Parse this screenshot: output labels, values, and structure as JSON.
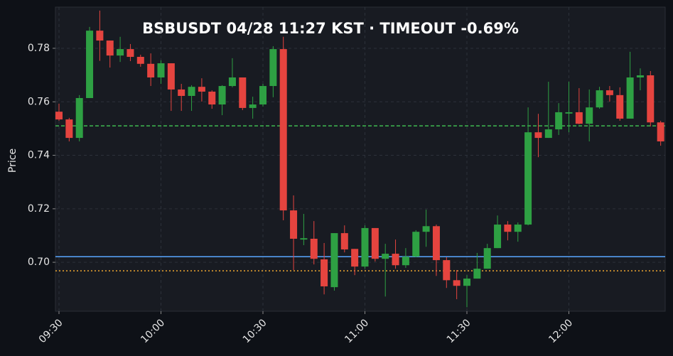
{
  "chart_data": {
    "type": "candlestick",
    "title": "BSBUSDT  04/28 11:27 KST  ·  TIMEOUT -0.69%",
    "ylabel": "Price",
    "x": [
      "09:30",
      "09:33",
      "09:36",
      "09:39",
      "09:42",
      "09:45",
      "09:48",
      "09:51",
      "09:54",
      "09:57",
      "10:00",
      "10:03",
      "10:06",
      "10:09",
      "10:12",
      "10:15",
      "10:18",
      "10:21",
      "10:24",
      "10:27",
      "10:30",
      "10:33",
      "10:36",
      "10:39",
      "10:42",
      "10:45",
      "10:48",
      "10:51",
      "10:54",
      "10:57",
      "11:00",
      "11:03",
      "11:06",
      "11:09",
      "11:12",
      "11:15",
      "11:18",
      "11:21",
      "11:24",
      "11:27",
      "11:30",
      "11:33",
      "11:36",
      "11:39",
      "11:42",
      "11:45",
      "11:48",
      "11:51",
      "11:54",
      "11:57",
      "12:00",
      "12:03",
      "12:06",
      "12:09",
      "12:12",
      "12:15",
      "12:18",
      "12:21",
      "12:24",
      "12:27"
    ],
    "open": [
      0.7563,
      0.7534,
      0.7465,
      0.7614,
      0.7866,
      0.7829,
      0.7773,
      0.7797,
      0.7768,
      0.7742,
      0.7691,
      0.7744,
      0.7646,
      0.7622,
      0.7656,
      0.7638,
      0.759,
      0.7659,
      0.7691,
      0.7577,
      0.759,
      0.7659,
      0.7797,
      0.7194,
      0.7085,
      0.7088,
      0.7011,
      0.6907,
      0.7109,
      0.705,
      0.6984,
      0.7128,
      0.7013,
      0.7032,
      0.6989,
      0.7021,
      0.7114,
      0.7135,
      0.7008,
      0.6933,
      0.6912,
      0.6939,
      0.6976,
      0.7053,
      0.7141,
      0.7114,
      0.7141,
      0.7486,
      0.7465,
      0.7497,
      0.7556,
      0.7561,
      0.7518,
      0.7579,
      0.7643,
      0.7625,
      0.7537,
      0.7691,
      0.7699,
      0.7523
    ],
    "high": [
      0.7593,
      0.754,
      0.7625,
      0.788,
      0.7941,
      0.7829,
      0.7843,
      0.7816,
      0.7776,
      0.7781,
      0.7755,
      0.7744,
      0.7667,
      0.7662,
      0.7688,
      0.7643,
      0.7662,
      0.7763,
      0.7691,
      0.7619,
      0.7667,
      0.7808,
      0.7843,
      0.725,
      0.7181,
      0.7154,
      0.7072,
      0.7109,
      0.7138,
      0.705,
      0.7138,
      0.7128,
      0.7069,
      0.7085,
      0.7053,
      0.712,
      0.7197,
      0.7141,
      0.7019,
      0.6971,
      0.6952,
      0.7035,
      0.7069,
      0.7175,
      0.7154,
      0.7149,
      0.7579,
      0.7555,
      0.7675,
      0.7595,
      0.7675,
      0.7651,
      0.7646,
      0.7656,
      0.7659,
      0.7654,
      0.7787,
      0.7725,
      0.7715,
      0.7529
    ],
    "low": [
      0.7529,
      0.7452,
      0.7452,
      0.7614,
      0.7753,
      0.7728,
      0.7749,
      0.7752,
      0.7731,
      0.7659,
      0.7667,
      0.7566,
      0.7566,
      0.7566,
      0.7601,
      0.7574,
      0.755,
      0.7654,
      0.7569,
      0.7537,
      0.7582,
      0.7617,
      0.7157,
      0.6971,
      0.7064,
      0.6992,
      0.688,
      0.6894,
      0.7037,
      0.6952,
      0.6976,
      0.7003,
      0.6872,
      0.6976,
      0.6979,
      0.7019,
      0.7058,
      0.6949,
      0.6904,
      0.6862,
      0.6832,
      0.6939,
      0.6976,
      0.7053,
      0.7082,
      0.7077,
      0.7138,
      0.7393,
      0.7465,
      0.7476,
      0.7486,
      0.7516,
      0.7452,
      0.7574,
      0.7601,
      0.7529,
      0.7537,
      0.7643,
      0.7508,
      0.7436
    ],
    "close": [
      0.7534,
      0.7465,
      0.7614,
      0.7866,
      0.7829,
      0.7773,
      0.7797,
      0.7768,
      0.7742,
      0.7691,
      0.7744,
      0.7646,
      0.7622,
      0.7656,
      0.7638,
      0.759,
      0.7659,
      0.7691,
      0.7577,
      0.759,
      0.7659,
      0.7797,
      0.7194,
      0.7088,
      0.709,
      0.7013,
      0.691,
      0.7109,
      0.7048,
      0.6984,
      0.7128,
      0.7013,
      0.7032,
      0.6989,
      0.7021,
      0.7114,
      0.7135,
      0.7008,
      0.6933,
      0.6912,
      0.6939,
      0.6976,
      0.7053,
      0.7141,
      0.7114,
      0.7141,
      0.7486,
      0.7465,
      0.7497,
      0.7561,
      0.7561,
      0.7518,
      0.7579,
      0.7643,
      0.7625,
      0.7537,
      0.7691,
      0.7699,
      0.7523,
      0.7452
    ],
    "up_color": "#2ea043",
    "down_color": "#e5443f",
    "lines": [
      {
        "value": 0.751,
        "color": "#3fb950",
        "style": "dashed"
      },
      {
        "value": 0.7021,
        "color": "#58a6ff",
        "style": "solid"
      },
      {
        "value": 0.6968,
        "color": "#f0a830",
        "style": "dotted"
      }
    ],
    "ylim": [
      0.6817,
      0.7954
    ],
    "yticks": [
      {
        "value": 0.7,
        "label": "0.70"
      },
      0.72,
      0.74,
      0.76,
      0.78
    ],
    "xticks": [
      "09:30",
      "10:00",
      "10:30",
      "11:00",
      "11:30",
      "12:00"
    ],
    "grid": true
  }
}
